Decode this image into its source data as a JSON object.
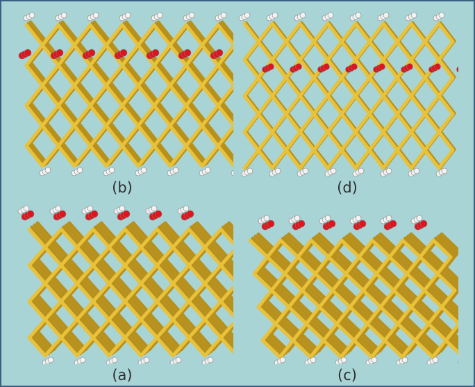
{
  "panels": {
    "b": {
      "label": "(b)",
      "surface_atom_color": "#e0141c",
      "surface_row": "second"
    },
    "d": {
      "label": "(d)",
      "surface_atom_color": "#e0141c",
      "surface_row": "second"
    },
    "a": {
      "label": "(a)",
      "surface_atom_color": "#e0141c",
      "surface_row": "top"
    },
    "c": {
      "label": "(c)",
      "surface_atom_color": "#e0141c",
      "surface_row": "top"
    }
  },
  "colors": {
    "background": "#a8d4d6",
    "border": "#3b5f83",
    "lattice": "#e8c23a",
    "lattice_dark": "#b8901c",
    "oxygen": "#e0141c",
    "hydrogen": "#f2f2f2"
  }
}
